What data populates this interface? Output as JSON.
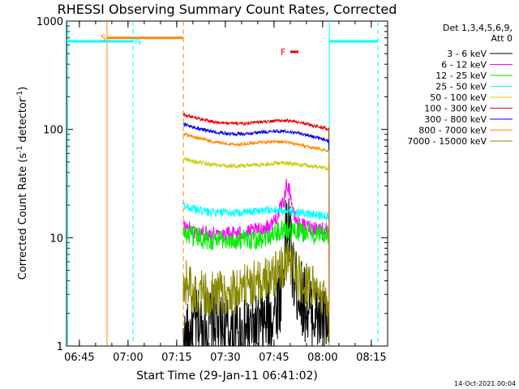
{
  "chart_data": {
    "type": "line",
    "title": "RHESSI Observing Summary Count Rates, Corrected",
    "xlabel": "Start Time (29-Jan-11 06:41:02)",
    "ylabel": "Corrected Count Rate (s",
    "ylabel_sup": "-1",
    "ylabel_mid": " detector",
    "ylabel_sup2": "-1",
    "ylabel_end": ")",
    "yscale": "log",
    "ylim": [
      1,
      1000
    ],
    "xlim_minutes": [
      0,
      99
    ],
    "x_ticks": [
      {
        "label": "06:45",
        "minute": 3.97
      },
      {
        "label": "07:00",
        "minute": 18.97
      },
      {
        "label": "07:15",
        "minute": 33.97
      },
      {
        "label": "07:30",
        "minute": 48.97
      },
      {
        "label": "07:45",
        "minute": 63.97
      },
      {
        "label": "08:00",
        "minute": 78.97
      },
      {
        "label": "08:15",
        "minute": 93.97
      }
    ],
    "y_ticks": [
      {
        "label": "1",
        "value": 1
      },
      {
        "label": "10",
        "value": 10
      },
      {
        "label": "100",
        "value": 100
      },
      {
        "label": "1000",
        "value": 1000
      }
    ],
    "legend": {
      "header": [
        "Det 1,3,4,5,6,9,",
        "Att 0"
      ],
      "placement": "right"
    },
    "series": [
      {
        "name": "3 - 6 keV",
        "color": "#000000",
        "start": 36,
        "end": 81,
        "points": [
          [
            36,
            1
          ],
          [
            40,
            1.5
          ],
          [
            45,
            1.6
          ],
          [
            50,
            1.3
          ],
          [
            55,
            1.4
          ],
          [
            60,
            1.5
          ],
          [
            63,
            1.8
          ],
          [
            66,
            3
          ],
          [
            68,
            14
          ],
          [
            69,
            10
          ],
          [
            70,
            4
          ],
          [
            72,
            3
          ],
          [
            75,
            2
          ],
          [
            78,
            1.8
          ],
          [
            80,
            1.6
          ],
          [
            81,
            1
          ]
        ],
        "noise": 0.35
      },
      {
        "name": "6 - 12 keV",
        "color": "#ff00ff",
        "start": 36,
        "end": 81,
        "points": [
          [
            36,
            13
          ],
          [
            40,
            11
          ],
          [
            45,
            11
          ],
          [
            50,
            11
          ],
          [
            55,
            11
          ],
          [
            60,
            12
          ],
          [
            63,
            13
          ],
          [
            65,
            16
          ],
          [
            67,
            22
          ],
          [
            68,
            32
          ],
          [
            69,
            26
          ],
          [
            70,
            16
          ],
          [
            72,
            13
          ],
          [
            76,
            12.5
          ],
          [
            80,
            12
          ],
          [
            81,
            11.5
          ]
        ],
        "noise": 0.07
      },
      {
        "name": "12 - 25 keV",
        "color": "#00ee00",
        "start": 36,
        "end": 81,
        "points": [
          [
            36,
            11
          ],
          [
            40,
            10
          ],
          [
            45,
            9.5
          ],
          [
            50,
            9.5
          ],
          [
            55,
            9.5
          ],
          [
            60,
            10
          ],
          [
            64,
            11
          ],
          [
            67,
            12
          ],
          [
            70,
            11.5
          ],
          [
            75,
            11
          ],
          [
            80,
            10.5
          ],
          [
            81,
            10
          ]
        ],
        "noise": 0.1
      },
      {
        "name": "25 - 50 keV",
        "color": "#00ffff",
        "start": 36,
        "end": 81,
        "points": [
          [
            36,
            20
          ],
          [
            40,
            18
          ],
          [
            45,
            17
          ],
          [
            50,
            17
          ],
          [
            55,
            17
          ],
          [
            60,
            18
          ],
          [
            65,
            18
          ],
          [
            70,
            17
          ],
          [
            75,
            16.5
          ],
          [
            80,
            16
          ],
          [
            81,
            15.5
          ]
        ],
        "noise": 0.04
      },
      {
        "name": "50 - 100 keV",
        "color": "#cccc00",
        "start": 36,
        "end": 81,
        "points": [
          [
            36,
            54
          ],
          [
            40,
            50
          ],
          [
            45,
            47
          ],
          [
            50,
            46
          ],
          [
            55,
            46
          ],
          [
            60,
            47
          ],
          [
            65,
            49
          ],
          [
            70,
            48
          ],
          [
            75,
            46
          ],
          [
            80,
            44
          ],
          [
            81,
            43
          ]
        ],
        "noise": 0.02
      },
      {
        "name": "100 - 300 keV",
        "color": "#ee0000",
        "start": 36,
        "end": 81,
        "points": [
          [
            36,
            138
          ],
          [
            40,
            128
          ],
          [
            45,
            118
          ],
          [
            50,
            113
          ],
          [
            55,
            113
          ],
          [
            60,
            117
          ],
          [
            64,
            120
          ],
          [
            68,
            121
          ],
          [
            72,
            116
          ],
          [
            76,
            108
          ],
          [
            80,
            102
          ],
          [
            81,
            100
          ]
        ],
        "noise": 0.015
      },
      {
        "name": "300 - 800 keV",
        "color": "#0000ee",
        "start": 36,
        "end": 81,
        "points": [
          [
            36,
            112
          ],
          [
            40,
            103
          ],
          [
            45,
            95
          ],
          [
            50,
            91
          ],
          [
            55,
            91
          ],
          [
            60,
            94
          ],
          [
            64,
            96
          ],
          [
            68,
            96
          ],
          [
            72,
            92
          ],
          [
            76,
            86
          ],
          [
            80,
            80
          ],
          [
            81,
            77
          ]
        ],
        "noise": 0.015
      },
      {
        "name": "800 - 7000 keV",
        "color": "#ff8800",
        "start": 36,
        "end": 81,
        "points": [
          [
            36,
            92
          ],
          [
            40,
            84
          ],
          [
            45,
            77
          ],
          [
            50,
            73
          ],
          [
            55,
            73
          ],
          [
            60,
            76
          ],
          [
            64,
            77
          ],
          [
            68,
            76
          ],
          [
            72,
            72
          ],
          [
            76,
            68
          ],
          [
            80,
            64
          ],
          [
            81,
            62
          ]
        ],
        "noise": 0.015
      },
      {
        "name": "7000 - 15000 keV",
        "color": "#888800",
        "start": 36,
        "end": 81,
        "points": [
          [
            36,
            4
          ],
          [
            40,
            3
          ],
          [
            45,
            3
          ],
          [
            50,
            3
          ],
          [
            55,
            3.5
          ],
          [
            60,
            4
          ],
          [
            63,
            4.5
          ],
          [
            66,
            5
          ],
          [
            68,
            6
          ],
          [
            70,
            5
          ],
          [
            72,
            4
          ],
          [
            75,
            3.5
          ],
          [
            78,
            3
          ],
          [
            80,
            3
          ],
          [
            81,
            2.5
          ]
        ],
        "noise": 0.22
      }
    ],
    "annotations": [
      {
        "text": "S",
        "color": "#ff8800"
      },
      {
        "text": "N",
        "color": "#00ffff"
      },
      {
        "text": "F",
        "color": "#ee0000"
      }
    ],
    "state_bars": [
      {
        "label": "S",
        "color": "#ff8800",
        "from": 12.5,
        "to": 36,
        "y": 700,
        "dash_from": false,
        "dash_to": true
      },
      {
        "label": "N",
        "color": "#00ffff",
        "from": 0,
        "to": 20.5,
        "y": 650,
        "dash_from": false,
        "dash_to": true
      },
      {
        "label": "N",
        "color": "#00ffff",
        "from": 81,
        "to": 96,
        "y": 650,
        "dash_from": false,
        "dash_to": true
      },
      {
        "label": "F",
        "color": "#ee0000",
        "from": 69,
        "to": 71.5,
        "y": 520,
        "dash_from": false,
        "dash_to": false
      }
    ],
    "solid_verticals": [
      {
        "minute": 0.4,
        "color": "#00ffff"
      },
      {
        "minute": 81,
        "color": "#00ffff"
      },
      {
        "minute": 12.5,
        "color": "#ff8800"
      }
    ]
  },
  "footer_timestamp": "14-Oct-2021 00:04"
}
